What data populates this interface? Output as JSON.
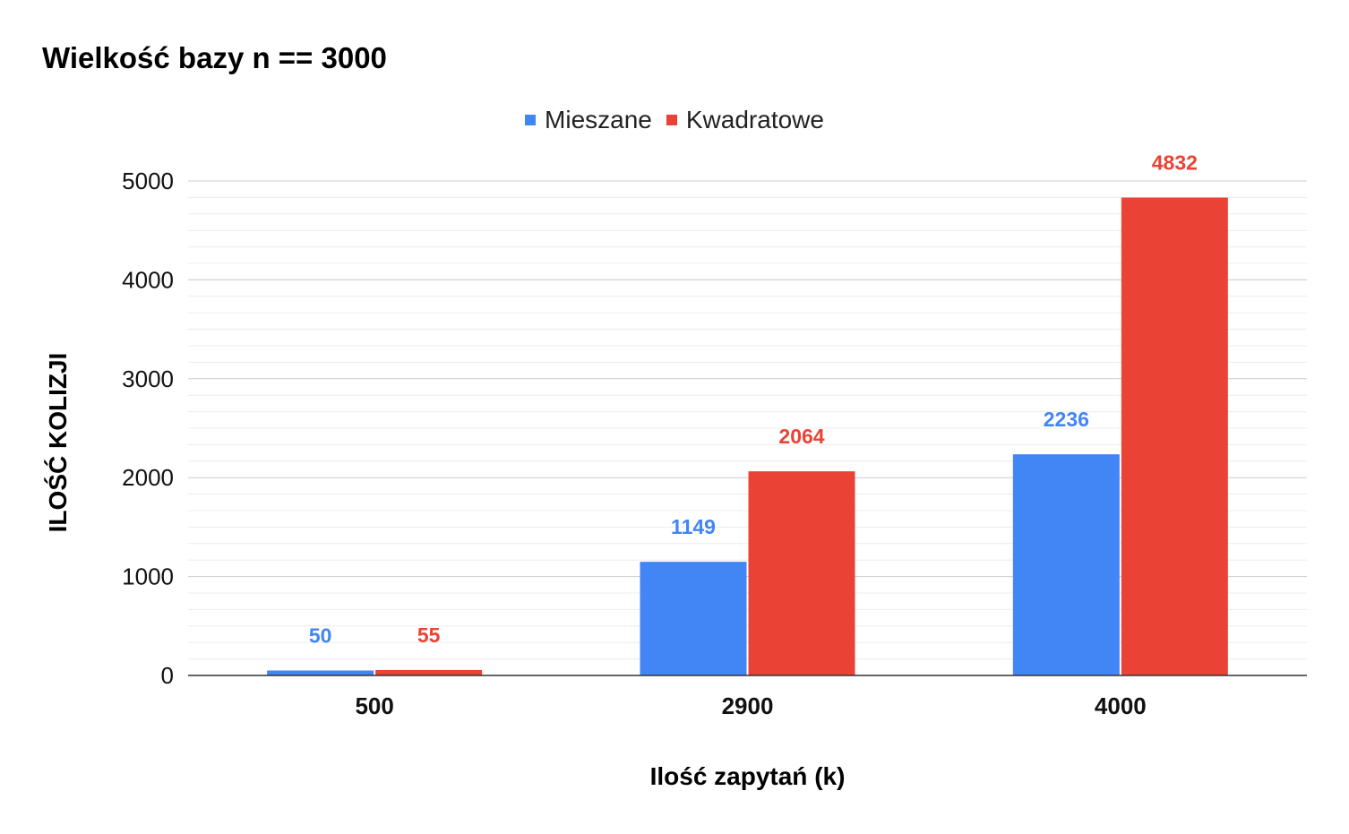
{
  "chart_data": {
    "type": "bar",
    "title": "Wielkość bazy n == 3000",
    "xlabel": "Ilość zapytań (k)",
    "ylabel": "ILOŚĆ KOLIZJI",
    "categories": [
      "500",
      "2900",
      "4000"
    ],
    "series": [
      {
        "name": "Mieszane",
        "values": [
          50,
          1149,
          2236
        ],
        "color": "#4285f4"
      },
      {
        "name": "Kwadratowe",
        "values": [
          55,
          2064,
          4832
        ],
        "color": "#ea4335"
      }
    ],
    "ylim": [
      0,
      5000
    ],
    "yticks": [
      0,
      1000,
      2000,
      3000,
      4000,
      5000
    ],
    "minor_gridlines_per_major": 6,
    "grid": true,
    "legend_position": "top-center",
    "data_labels": true
  }
}
